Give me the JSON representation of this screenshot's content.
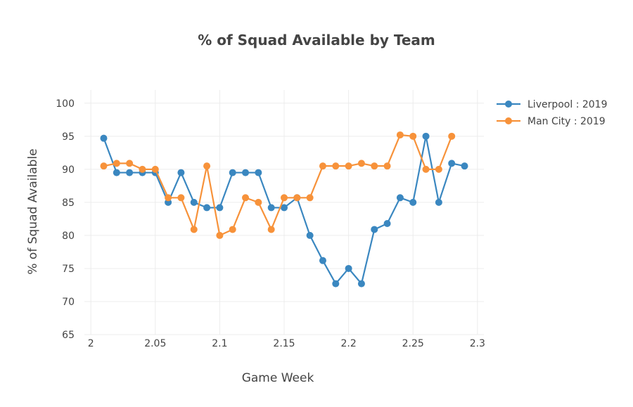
{
  "chart_data": {
    "type": "line",
    "title": "% of Squad Available by Team",
    "xlabel": "Game Week",
    "ylabel": "% of Squad Available",
    "xlim": [
      1.995,
      2.305
    ],
    "ylim": [
      65,
      102
    ],
    "x_ticks": [
      2,
      2.05,
      2.1,
      2.15,
      2.2,
      2.25,
      2.3
    ],
    "x_tick_labels": [
      "2",
      "2.05",
      "2.1",
      "2.15",
      "2.2",
      "2.25",
      "2.3"
    ],
    "y_ticks": [
      65,
      70,
      75,
      80,
      85,
      90,
      95,
      100
    ],
    "y_tick_labels": [
      "65",
      "70",
      "75",
      "80",
      "85",
      "90",
      "95",
      "100"
    ],
    "grid": true,
    "legend_position": "top-right",
    "series": [
      {
        "name": "Liverpool : 2019",
        "color": "#3a87c0",
        "x": [
          2.01,
          2.02,
          2.03,
          2.04,
          2.05,
          2.06,
          2.07,
          2.08,
          2.09,
          2.1,
          2.11,
          2.12,
          2.13,
          2.14,
          2.15,
          2.16,
          2.17,
          2.18,
          2.19,
          2.2,
          2.21,
          2.22,
          2.23,
          2.24,
          2.25,
          2.26,
          2.27,
          2.28,
          2.29
        ],
        "values": [
          94.7,
          89.5,
          89.5,
          89.5,
          89.5,
          85.0,
          89.5,
          85.0,
          84.2,
          84.2,
          89.5,
          89.5,
          89.5,
          84.2,
          84.2,
          85.7,
          80.0,
          76.2,
          72.7,
          75.0,
          72.7,
          80.9,
          81.8,
          85.7,
          85.0,
          95.0,
          85.0,
          90.9,
          90.5
        ]
      },
      {
        "name": "Man City : 2019",
        "color": "#f7923a",
        "x": [
          2.01,
          2.02,
          2.03,
          2.04,
          2.05,
          2.06,
          2.07,
          2.08,
          2.09,
          2.1,
          2.11,
          2.12,
          2.13,
          2.14,
          2.15,
          2.16,
          2.17,
          2.18,
          2.19,
          2.2,
          2.21,
          2.22,
          2.23,
          2.24,
          2.25,
          2.26,
          2.27,
          2.28
        ],
        "values": [
          90.5,
          90.9,
          90.9,
          90.0,
          90.0,
          85.7,
          85.7,
          80.9,
          90.5,
          80.0,
          80.9,
          85.7,
          85.0,
          80.9,
          85.7,
          85.7,
          85.7,
          90.5,
          90.5,
          90.5,
          90.9,
          90.5,
          90.5,
          95.2,
          95.0,
          90.0,
          90.0,
          95.0
        ]
      }
    ]
  }
}
